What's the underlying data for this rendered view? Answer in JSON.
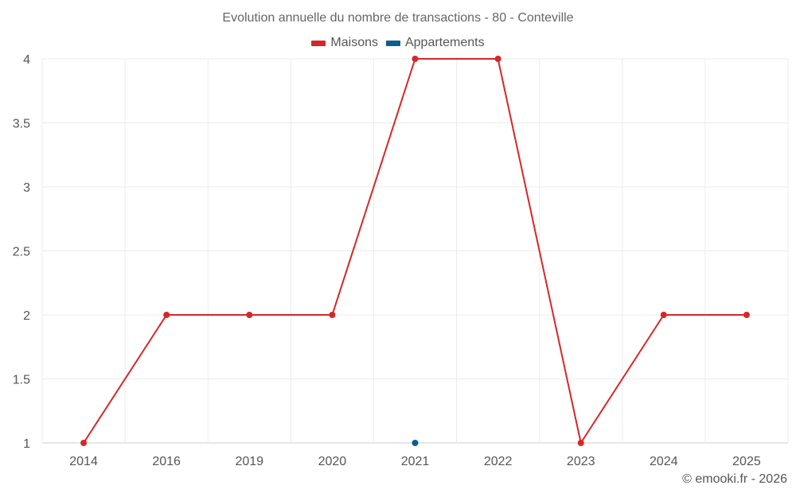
{
  "chart_data": {
    "type": "line",
    "title": "Evolution annuelle du nombre de transactions - 80 - Conteville",
    "xlabel": "",
    "ylabel": "",
    "categories": [
      "2014",
      "2016",
      "2019",
      "2020",
      "2021",
      "2022",
      "2023",
      "2024",
      "2025"
    ],
    "ylim": [
      1,
      4
    ],
    "yticks": [
      1,
      1.5,
      2,
      2.5,
      3,
      3.5,
      4
    ],
    "ytick_labels": [
      "1",
      "1.5",
      "2",
      "2.5",
      "3",
      "3.5",
      "4"
    ],
    "grid": true,
    "legend_position": "top-center",
    "series": [
      {
        "name": "Maisons",
        "color": "#d62728",
        "values": [
          1,
          2,
          2,
          2,
          4,
          4,
          1,
          2,
          2
        ]
      },
      {
        "name": "Appartements",
        "color": "#0b5e94",
        "values": [
          null,
          null,
          null,
          null,
          1,
          null,
          null,
          null,
          null
        ]
      }
    ]
  },
  "credit": "© emooki.fr - 2026"
}
